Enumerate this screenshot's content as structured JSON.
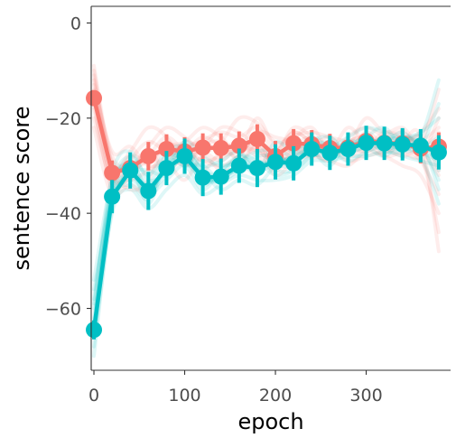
{
  "chart_data": {
    "type": "line",
    "title": "",
    "xlabel": "epoch",
    "ylabel": "sentence score",
    "xlim": [
      -3,
      393
    ],
    "ylim": [
      -73,
      3.5
    ],
    "x_ticks": [
      0,
      100,
      200,
      300
    ],
    "y_ticks": [
      0,
      -20,
      -40,
      -60
    ],
    "x_tick_labels": [
      "0",
      "100",
      "200",
      "300"
    ],
    "y_tick_labels": [
      "0",
      "−20",
      "−40",
      "−60"
    ],
    "grid": false,
    "legend": "none",
    "colors": {
      "red": "#f8766d",
      "teal": "#00bfc4",
      "axis": "#333333",
      "tick_text": "#4d4d4d"
    },
    "x": [
      0,
      20,
      40,
      60,
      80,
      100,
      120,
      140,
      160,
      180,
      200,
      220,
      240,
      260,
      280,
      300,
      320,
      340,
      360,
      380
    ],
    "series": [
      {
        "color": "#f8766d",
        "mean": [
          -15.8,
          -31.5,
          -30.5,
          -28,
          -26.5,
          -27,
          -26.2,
          -26.3,
          -25.8,
          -24.4,
          -28,
          -25.3,
          -25.5,
          -26.3,
          -26.2,
          -24.8,
          -25.2,
          -25.3,
          -26.4,
          -26
        ],
        "err": [
          1.5,
          2.6,
          2.8,
          3.0,
          3.1,
          3.0,
          3.0,
          3.1,
          3.0,
          3.1,
          3.2,
          3.0,
          3.0,
          3.0,
          3.0,
          3.1,
          3.0,
          3.0,
          3.1,
          3.0
        ],
        "traces": [
          [
            -12,
            -28,
            -30,
            -26,
            -22,
            -24,
            -27,
            -25,
            -20,
            -21,
            -25,
            -24,
            -22,
            -27,
            -26,
            -20,
            -23,
            -22,
            -25,
            -14
          ],
          [
            -14,
            -32,
            -33,
            -31,
            -28,
            -26,
            -29,
            -28,
            -27,
            -25,
            -30,
            -27,
            -26,
            -24,
            -28,
            -26,
            -25,
            -27,
            -28,
            -20
          ],
          [
            -10,
            -30,
            -27,
            -22,
            -24,
            -30,
            -25,
            -23,
            -24,
            -22,
            -27,
            -22,
            -24,
            -28,
            -25,
            -24,
            -27,
            -26,
            -24,
            -31
          ],
          [
            -17,
            -35,
            -34,
            -36,
            -30,
            -33,
            -28,
            -31,
            -30,
            -26,
            -32,
            -29,
            -28,
            -29,
            -30,
            -27,
            -28,
            -30,
            -32,
            -40
          ],
          [
            -20,
            -33,
            -28,
            -29,
            -26,
            -25,
            -22,
            -24,
            -27,
            -20,
            -26,
            -23,
            -25,
            -27,
            -22,
            -25,
            -24,
            -23,
            -26,
            -23
          ],
          [
            -15,
            -29,
            -31,
            -27,
            -31,
            -28,
            -27,
            -29,
            -26,
            -28,
            -30,
            -26,
            -27,
            -25,
            -27,
            -23,
            -26,
            -28,
            -27,
            -32
          ],
          [
            -9,
            -30,
            -35,
            -33,
            -25,
            -29,
            -31,
            -27,
            -25,
            -27,
            -29,
            -28,
            -26,
            -26,
            -29,
            -28,
            -27,
            -25,
            -23,
            -18
          ],
          [
            -22,
            -36,
            -29,
            -25,
            -27,
            -27,
            -24,
            -26,
            -28,
            -23,
            -24,
            -25,
            -27,
            -29,
            -24,
            -22,
            -24,
            -26,
            -29,
            -36
          ],
          [
            -13,
            -27,
            -26,
            -30,
            -29,
            -25,
            -26,
            -22,
            -23,
            -26,
            -28,
            -24,
            -23,
            -24,
            -25,
            -26,
            -23,
            -24,
            -26,
            -27
          ],
          [
            -18,
            -34,
            -32,
            -28,
            -24,
            -27,
            -29,
            -30,
            -28,
            -24,
            -31,
            -27,
            -28,
            -27,
            -27,
            -25,
            -28,
            -27,
            -25,
            -22
          ],
          [
            -11,
            -31,
            -30,
            -28,
            -27,
            -30,
            -26,
            -25,
            -29,
            -25,
            -27,
            -23,
            -25,
            -26,
            -26,
            -27,
            -25,
            -24,
            -27,
            -44
          ],
          [
            -16,
            -33,
            -31,
            -29,
            -26,
            -26,
            -25,
            -27,
            -26,
            -27,
            -29,
            -26,
            -24,
            -28,
            -25,
            -24,
            -26,
            -25,
            -24,
            -48
          ]
        ]
      },
      {
        "color": "#00bfc4",
        "mean": [
          -64.5,
          -36.5,
          -31,
          -35.3,
          -30.5,
          -28,
          -32.5,
          -32.3,
          -30,
          -30.5,
          -29.2,
          -29.5,
          -26.5,
          -27.3,
          -26.5,
          -25.2,
          -25.3,
          -25.5,
          -25.8,
          -27.2
        ],
        "err": [
          2.0,
          3.5,
          3.8,
          4.0,
          3.6,
          3.7,
          3.9,
          3.8,
          3.6,
          4.0,
          3.7,
          3.6,
          3.5,
          3.6,
          3.5,
          3.6,
          3.5,
          3.4,
          3.5,
          3.6
        ],
        "traces": [
          [
            -58,
            -34,
            -28,
            -32,
            -27,
            -26,
            -30,
            -29,
            -27,
            -31,
            -25,
            -27,
            -24,
            -26,
            -24,
            -22,
            -23,
            -24,
            -23,
            -20
          ],
          [
            -62,
            -38,
            -33,
            -36,
            -33,
            -30,
            -35,
            -31,
            -28,
            -29,
            -32,
            -31,
            -28,
            -27,
            -29,
            -27,
            -26,
            -27,
            -28,
            -38
          ],
          [
            -66,
            -35,
            -30,
            -38,
            -29,
            -27,
            -31,
            -35,
            -33,
            -34,
            -30,
            -28,
            -27,
            -30,
            -25,
            -26,
            -28,
            -25,
            -27,
            -26
          ],
          [
            -60,
            -32,
            -27,
            -33,
            -31,
            -25,
            -28,
            -30,
            -29,
            -27,
            -27,
            -30,
            -25,
            -24,
            -27,
            -24,
            -22,
            -26,
            -24,
            -12
          ],
          [
            -68,
            -40,
            -35,
            -39,
            -35,
            -32,
            -36,
            -34,
            -32,
            -33,
            -33,
            -32,
            -29,
            -29,
            -28,
            -28,
            -27,
            -28,
            -29,
            -30
          ],
          [
            -56,
            -37,
            -32,
            -34,
            -28,
            -29,
            -33,
            -33,
            -30,
            -28,
            -28,
            -29,
            -26,
            -28,
            -26,
            -25,
            -25,
            -23,
            -26,
            -24
          ],
          [
            -64,
            -36,
            -29,
            -35,
            -30,
            -28,
            -32,
            -32,
            -31,
            -30,
            -29,
            -30,
            -27,
            -27,
            -26,
            -24,
            -26,
            -26,
            -25,
            -35
          ],
          [
            -54,
            -33,
            -31,
            -31,
            -32,
            -27,
            -34,
            -31,
            -29,
            -32,
            -27,
            -28,
            -26,
            -25,
            -27,
            -26,
            -24,
            -25,
            -27,
            -29
          ],
          [
            -70,
            -39,
            -34,
            -37,
            -29,
            -30,
            -30,
            -33,
            -31,
            -29,
            -31,
            -31,
            -28,
            -28,
            -26,
            -25,
            -27,
            -27,
            -26,
            -33
          ],
          [
            -59,
            -35,
            -30,
            -34,
            -31,
            -29,
            -33,
            -32,
            -28,
            -30,
            -29,
            -29,
            -27,
            -26,
            -27,
            -26,
            -25,
            -24,
            -25,
            -28
          ],
          [
            -63,
            -37,
            -32,
            -36,
            -30,
            -27,
            -31,
            -32,
            -30,
            -31,
            -30,
            -30,
            -26,
            -27,
            -26,
            -24,
            -26,
            -25,
            -24,
            -31
          ],
          [
            -66,
            -38,
            -31,
            -35,
            -32,
            -28,
            -32,
            -33,
            -30,
            -30,
            -29,
            -28,
            -25,
            -28,
            -27,
            -25,
            -25,
            -26,
            -26,
            -17
          ]
        ]
      }
    ]
  }
}
